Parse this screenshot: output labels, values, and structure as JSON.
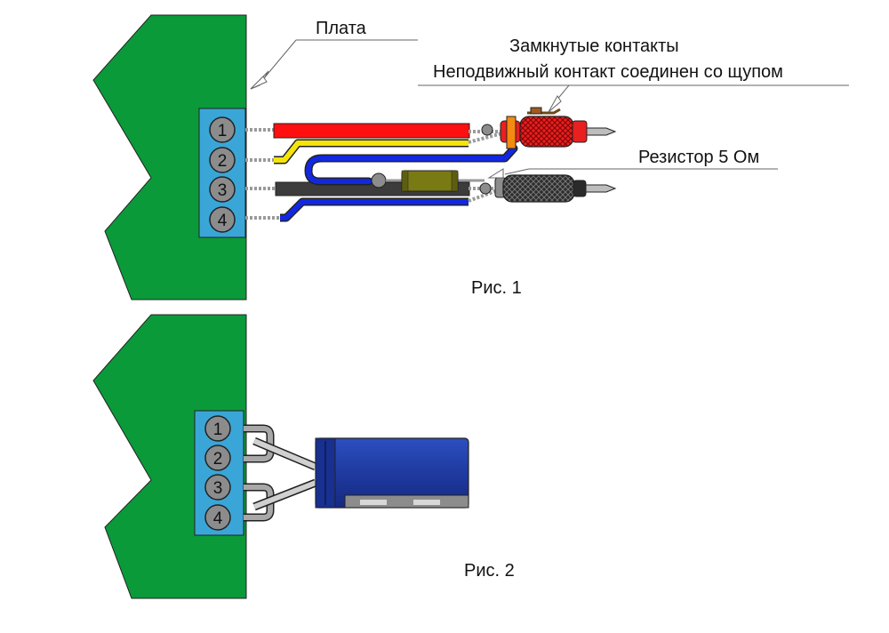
{
  "figure1": {
    "caption": "Рис. 1",
    "board_label": "Плата",
    "note_line1": "Замкнутые контакты",
    "note_line2": "Неподвижный контакт соединен со щупом",
    "resistor_label": "Резистор 5 Ом",
    "pins": [
      "1",
      "2",
      "3",
      "4"
    ]
  },
  "figure2": {
    "caption": "Рис. 2",
    "pins": [
      "1",
      "2",
      "3",
      "4"
    ]
  },
  "colors": {
    "board": "#0a9a3a",
    "connector": "#3aa6d8",
    "pin": "#8c8c8c",
    "wire_red": "#ff1010",
    "wire_yellow": "#f5e40a",
    "wire_black": "#3c3c3c",
    "wire_blue": "#1228e0",
    "resistor": "#7a7a14",
    "capacitor": "#1f3aa0",
    "probe_red": "#e82020",
    "probe_black": "#2a2a2a"
  }
}
